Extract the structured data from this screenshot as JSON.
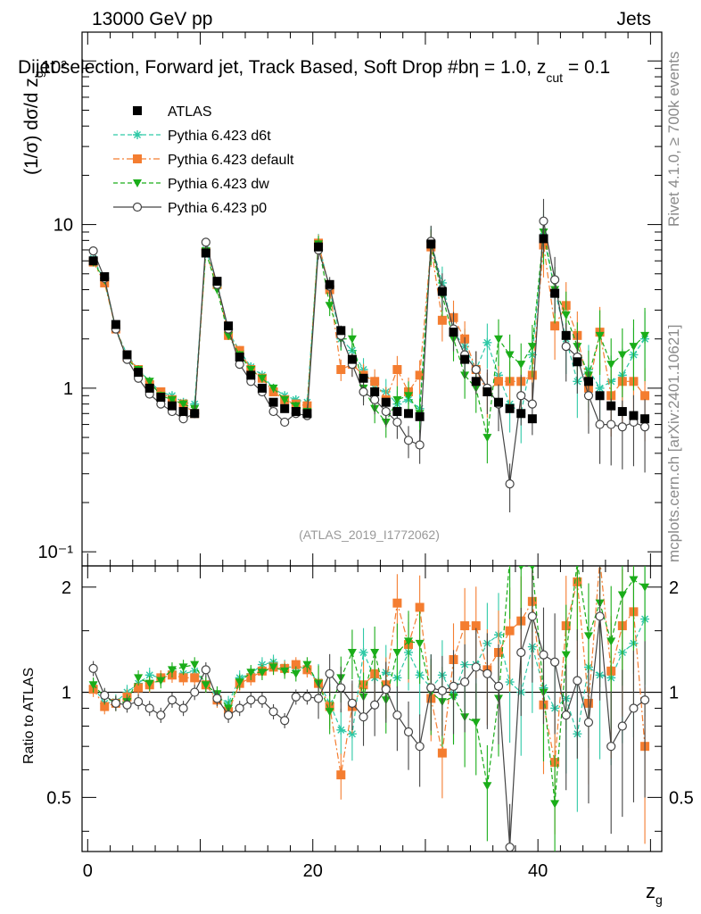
{
  "header": {
    "left": "13000 GeV pp",
    "right": "Jets",
    "title_main": "Dijet selection, Forward jet, Track Based, Soft Drop #b",
    "title_param": "η = 1.0, z",
    "title_sub": "cut",
    "title_end": " = 0.1",
    "title_overlap": "10²"
  },
  "side": {
    "rivet": "Rivet 4.1.0, ≥ 700k events",
    "mcplots": "mcplots.cern.ch [arXiv:2401.10621]"
  },
  "colors": {
    "atlas": "#000000",
    "d6t": "#2ec9a6",
    "default": "#f47d30",
    "dw": "#1aad19",
    "p0": "#444444",
    "watermark": "#999999"
  },
  "chart_data": {
    "type": "scatter",
    "watermark": "(ATLAS_2019_I1772062)",
    "xlabel": "z",
    "xlabel_sub": "g",
    "ylabel": "(1/σ) dσ/d z",
    "ylabel_sub": "g",
    "ratio_ylabel": "Ratio to ATLAS",
    "xlim": [
      -0.5,
      51
    ],
    "ylim": [
      0.082,
      150
    ],
    "ratio_ylim": [
      0.35,
      2.3
    ],
    "x_ticks": [
      0,
      20,
      40
    ],
    "x_tick_labels": [
      "0",
      "20",
      "40"
    ],
    "y_ticks": [
      0.1,
      1,
      10
    ],
    "y_tick_labels": [
      "10⁻¹",
      "1",
      "10"
    ],
    "ratio_ticks": [
      0.5,
      1,
      2
    ],
    "ratio_tick_labels": [
      "0.5",
      "1",
      "2"
    ],
    "x": [
      0.5,
      1.5,
      2.5,
      3.5,
      4.5,
      5.5,
      6.5,
      7.5,
      8.5,
      9.5,
      10.5,
      11.5,
      12.5,
      13.5,
      14.5,
      15.5,
      16.5,
      17.5,
      18.5,
      19.5,
      20.5,
      21.5,
      22.5,
      23.5,
      24.5,
      25.5,
      26.5,
      27.5,
      28.5,
      29.5,
      30.5,
      31.5,
      32.5,
      33.5,
      34.5,
      35.5,
      36.5,
      37.5,
      38.5,
      39.5,
      40.5,
      41.5,
      42.5,
      43.5,
      44.5,
      45.5,
      46.5,
      47.5,
      48.5,
      49.5
    ],
    "series": [
      {
        "name": "ATLAS",
        "key": "atlas",
        "marker": "square",
        "line": "none",
        "values": [
          6.0,
          4.8,
          2.45,
          1.6,
          1.25,
          1.0,
          0.88,
          0.78,
          0.72,
          0.7,
          6.7,
          4.5,
          2.4,
          1.55,
          1.2,
          1.0,
          0.82,
          0.75,
          0.72,
          0.7,
          7.3,
          4.3,
          2.25,
          1.5,
          1.15,
          0.95,
          0.82,
          0.72,
          0.7,
          0.67,
          7.6,
          3.9,
          2.2,
          1.5,
          1.1,
          0.95,
          0.82,
          0.75,
          0.7,
          0.65,
          8.2,
          3.8,
          2.1,
          1.45,
          1.1,
          0.9,
          0.78,
          0.72,
          0.68,
          0.65
        ]
      },
      {
        "name": "Pythia 6.423 d6t",
        "key": "d6t",
        "marker": "star",
        "line": "dashed",
        "values": [
          6.2,
          4.5,
          2.3,
          1.6,
          1.3,
          1.1,
          0.95,
          0.9,
          0.82,
          0.8,
          7.0,
          4.4,
          2.2,
          1.7,
          1.35,
          1.2,
          1.0,
          0.9,
          0.85,
          0.82,
          7.8,
          4.0,
          2.0,
          1.7,
          1.3,
          1.0,
          0.95,
          0.8,
          0.85,
          0.75,
          7.8,
          4.4,
          2.2,
          1.8,
          1.3,
          1.9,
          1.2,
          0.8,
          0.7,
          1.6,
          8.5,
          4.0,
          2.0,
          1.1,
          1.3,
          1.0,
          1.1,
          1.2,
          1.6,
          2.0
        ],
        "ratio": [
          1.04,
          0.93,
          0.94,
          1.0,
          1.06,
          1.12,
          1.1,
          1.15,
          1.13,
          1.15,
          1.06,
          0.97,
          0.93,
          1.1,
          1.13,
          1.2,
          1.22,
          1.18,
          1.18,
          1.17,
          1.07,
          0.93,
          0.78,
          0.76,
          1.3,
          1.1,
          1.14,
          1.1,
          1.3,
          1.12,
          1.03,
          1.12,
          0.98,
          1.2,
          1.2,
          1.38,
          1.46,
          1.07,
          1.0,
          1.35,
          1.03,
          0.9,
          0.96,
          0.76,
          1.18,
          1.12,
          1.1,
          1.3,
          1.38,
          1.62
        ]
      },
      {
        "name": "Pythia 6.423 default",
        "key": "default",
        "marker": "square",
        "line": "dashdot",
        "values": [
          5.9,
          4.4,
          2.3,
          1.55,
          1.3,
          1.05,
          0.95,
          0.85,
          0.8,
          0.7,
          6.8,
          4.3,
          2.1,
          1.7,
          1.3,
          1.15,
          0.95,
          0.85,
          0.8,
          0.78,
          7.7,
          4.0,
          1.3,
          1.4,
          1.2,
          1.1,
          0.85,
          1.3,
          0.95,
          1.2,
          7.3,
          2.6,
          2.7,
          2.0,
          1.3,
          0.95,
          1.1,
          1.1,
          1.1,
          1.2,
          7.5,
          2.4,
          3.2,
          2.1,
          1.0,
          2.2,
          0.9,
          1.1,
          1.1,
          0.9
        ],
        "ratio": [
          1.02,
          0.91,
          0.93,
          0.97,
          1.03,
          1.05,
          1.1,
          1.12,
          1.1,
          1.1,
          1.05,
          0.95,
          0.88,
          1.06,
          1.1,
          1.15,
          1.18,
          1.17,
          1.2,
          1.16,
          1.06,
          0.91,
          0.58,
          0.91,
          1.05,
          1.13,
          1.05,
          1.8,
          1.37,
          1.75,
          0.96,
          0.67,
          1.24,
          1.55,
          1.55,
          1.16,
          1.3,
          1.5,
          1.6,
          1.82,
          0.92,
          0.63,
          1.55,
          2.07,
          0.93,
          2.4,
          1.15,
          1.55,
          1.7,
          0.7
        ]
      },
      {
        "name": "Pythia 6.423 dw",
        "key": "dw",
        "marker": "triangle-down",
        "line": "dashed",
        "values": [
          5.9,
          4.6,
          2.3,
          1.5,
          1.3,
          1.1,
          0.9,
          0.85,
          0.8,
          0.75,
          6.9,
          4.0,
          2.1,
          1.6,
          1.3,
          1.15,
          1.0,
          0.85,
          0.78,
          0.72,
          7.6,
          3.2,
          2.0,
          2.0,
          1.0,
          0.75,
          0.62,
          0.85,
          0.9,
          0.7,
          7.5,
          3.7,
          2.0,
          1.2,
          1.0,
          0.5,
          2.0,
          1.6,
          1.4,
          1.8,
          9.0,
          4.0,
          2.8,
          1.8,
          1.2,
          2.1,
          1.4,
          1.6,
          1.8,
          2.1
        ],
        "ratio": [
          1.05,
          0.97,
          0.93,
          0.94,
          1.1,
          1.06,
          1.08,
          1.16,
          1.18,
          1.2,
          1.05,
          0.99,
          0.9,
          1.07,
          1.14,
          1.14,
          1.18,
          1.15,
          1.13,
          1.2,
          1.06,
          0.88,
          1.1,
          1.3,
          0.97,
          1.3,
          0.95,
          1.3,
          1.4,
          1.38,
          1.0,
          0.94,
          0.97,
          0.85,
          0.82,
          0.54,
          0.96,
          2.42,
          2.3,
          2.3,
          1.0,
          0.48,
          1.28,
          2.35,
          1.45,
          1.8,
          1.4,
          1.9,
          2.1,
          2.0
        ]
      },
      {
        "name": "Pythia 6.423 p0",
        "key": "p0",
        "marker": "circle-open",
        "line": "solid",
        "values": [
          6.9,
          4.7,
          2.3,
          1.5,
          1.15,
          0.92,
          0.8,
          0.72,
          0.65,
          0.7,
          7.8,
          4.3,
          2.3,
          1.4,
          1.1,
          0.95,
          0.72,
          0.62,
          0.7,
          0.68,
          7.0,
          4.2,
          2.1,
          1.4,
          0.95,
          0.85,
          0.72,
          0.62,
          0.48,
          0.45,
          7.9,
          4.0,
          2.3,
          1.6,
          1.3,
          1.0,
          0.8,
          0.26,
          0.9,
          0.8,
          10.5,
          4.6,
          1.8,
          1.55,
          0.9,
          0.6,
          0.6,
          0.58,
          0.62,
          0.58
        ],
        "ratio": [
          1.17,
          0.98,
          0.93,
          0.92,
          0.94,
          0.9,
          0.86,
          0.95,
          0.9,
          1.0,
          1.16,
          0.96,
          0.86,
          0.9,
          0.95,
          0.95,
          0.88,
          0.83,
          0.97,
          0.97,
          0.96,
          1.13,
          1.03,
          0.93,
          0.85,
          0.92,
          1.02,
          0.86,
          0.77,
          0.7,
          1.03,
          1.01,
          1.04,
          1.07,
          1.18,
          1.13,
          1.04,
          0.36,
          1.3,
          1.65,
          1.28,
          1.22,
          0.86,
          1.08,
          0.82,
          1.65,
          0.7,
          0.8,
          0.9,
          0.95
        ]
      }
    ]
  }
}
